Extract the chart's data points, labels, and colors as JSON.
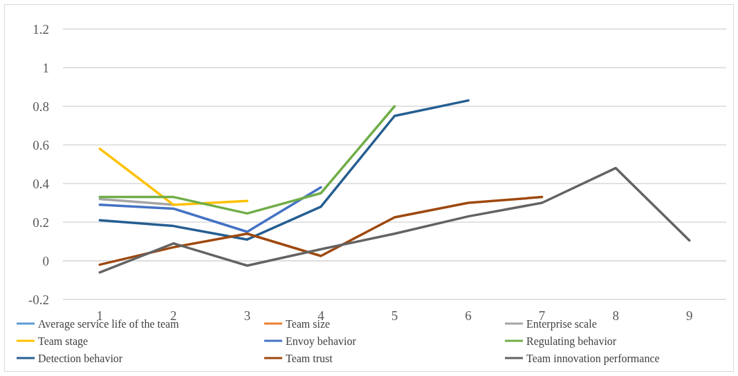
{
  "chart_data": {
    "type": "line",
    "categories": [
      "1",
      "2",
      "3",
      "4",
      "5",
      "6",
      "7",
      "8",
      "9"
    ],
    "ylim": [
      -0.2,
      1.2
    ],
    "yticks": [
      -0.2,
      0,
      0.2,
      0.4,
      0.6,
      0.8,
      1,
      1.2
    ],
    "grid": "y",
    "legend": "bottom",
    "marker": "none",
    "line_style": "solid",
    "series": [
      {
        "name": "Average service life of the team",
        "color": "#5b9bd5",
        "values": [
          null,
          null,
          null,
          null,
          null,
          null,
          null,
          null,
          null
        ]
      },
      {
        "name": "Team size",
        "color": "#ed7d31",
        "values": [
          null,
          null,
          null,
          null,
          null,
          null,
          null,
          null,
          null
        ]
      },
      {
        "name": "Enterprise scale",
        "color": "#a5a5a5",
        "values": [
          0.32,
          0.29,
          null,
          null,
          null,
          null,
          null,
          null,
          null
        ]
      },
      {
        "name": "Team stage",
        "color": "#ffc000",
        "values": [
          0.58,
          0.29,
          0.31,
          null,
          null,
          null,
          null,
          null,
          null
        ]
      },
      {
        "name": "Envoy behavior",
        "color": "#4472c4",
        "values": [
          0.29,
          0.27,
          0.15,
          0.38,
          null,
          null,
          null,
          null,
          null
        ]
      },
      {
        "name": "Regulating behavior",
        "color": "#70ad47",
        "values": [
          0.33,
          0.33,
          0.245,
          0.35,
          0.8,
          null,
          null,
          null,
          null
        ]
      },
      {
        "name": "Detection behavior",
        "color": "#255e91",
        "values": [
          0.21,
          0.18,
          0.11,
          0.28,
          0.75,
          0.83,
          null,
          null,
          null
        ]
      },
      {
        "name": "Team trust",
        "color": "#9e480e",
        "values": [
          -0.02,
          0.07,
          0.14,
          0.025,
          0.225,
          0.3,
          0.33,
          null,
          null
        ]
      },
      {
        "name": "Team innovation performance",
        "color": "#636363",
        "values": [
          -0.06,
          0.09,
          -0.025,
          0.06,
          0.14,
          0.23,
          0.3,
          0.48,
          0.105
        ]
      }
    ]
  }
}
